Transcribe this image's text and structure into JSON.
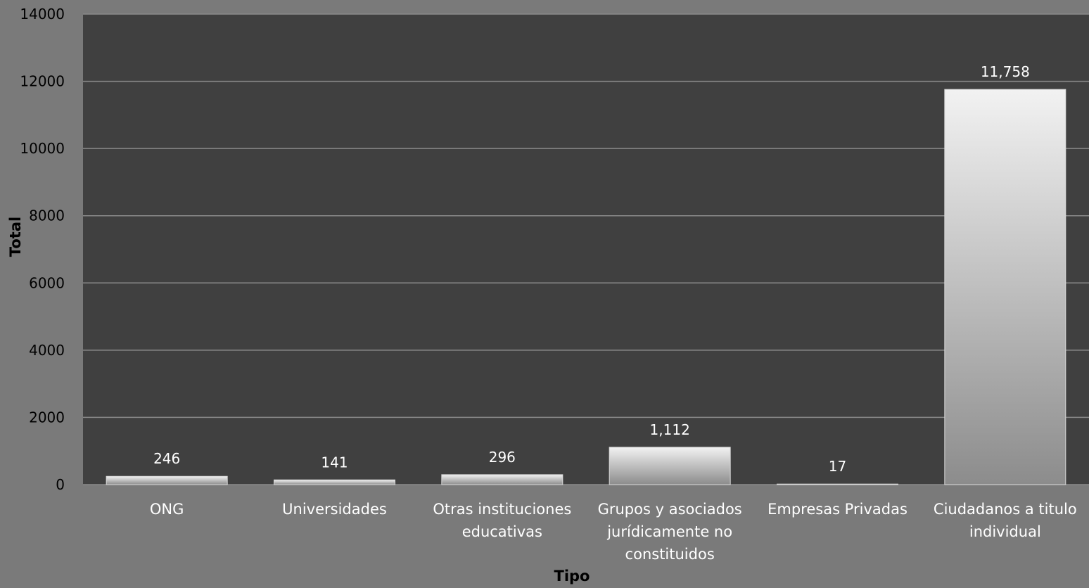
{
  "chart_data": {
    "type": "bar",
    "categories": [
      [
        "ONG"
      ],
      [
        "Universidades"
      ],
      [
        "Otras instituciones",
        "educativas"
      ],
      [
        "Grupos y asociados",
        "jurídicamente no",
        "constituidos"
      ],
      [
        "Empresas Privadas"
      ],
      [
        "Ciudadanos a titulo",
        "individual"
      ]
    ],
    "values": [
      246,
      141,
      296,
      1112,
      17,
      11758
    ],
    "data_labels": [
      "246",
      "141",
      "296",
      "1,112",
      "17",
      "11,758"
    ],
    "xlabel": "Tipo",
    "ylabel": "Total",
    "ylim": [
      0,
      14000
    ],
    "yticks": [
      0,
      2000,
      4000,
      6000,
      8000,
      10000,
      12000,
      14000
    ],
    "grid": true,
    "colors": {
      "page_background": "#7a7a7a",
      "plot_background": "#404040",
      "gridline": "#8a8a8a",
      "bar_light": "#f2f2f2",
      "bar_dark": "#8c8c8c"
    }
  }
}
